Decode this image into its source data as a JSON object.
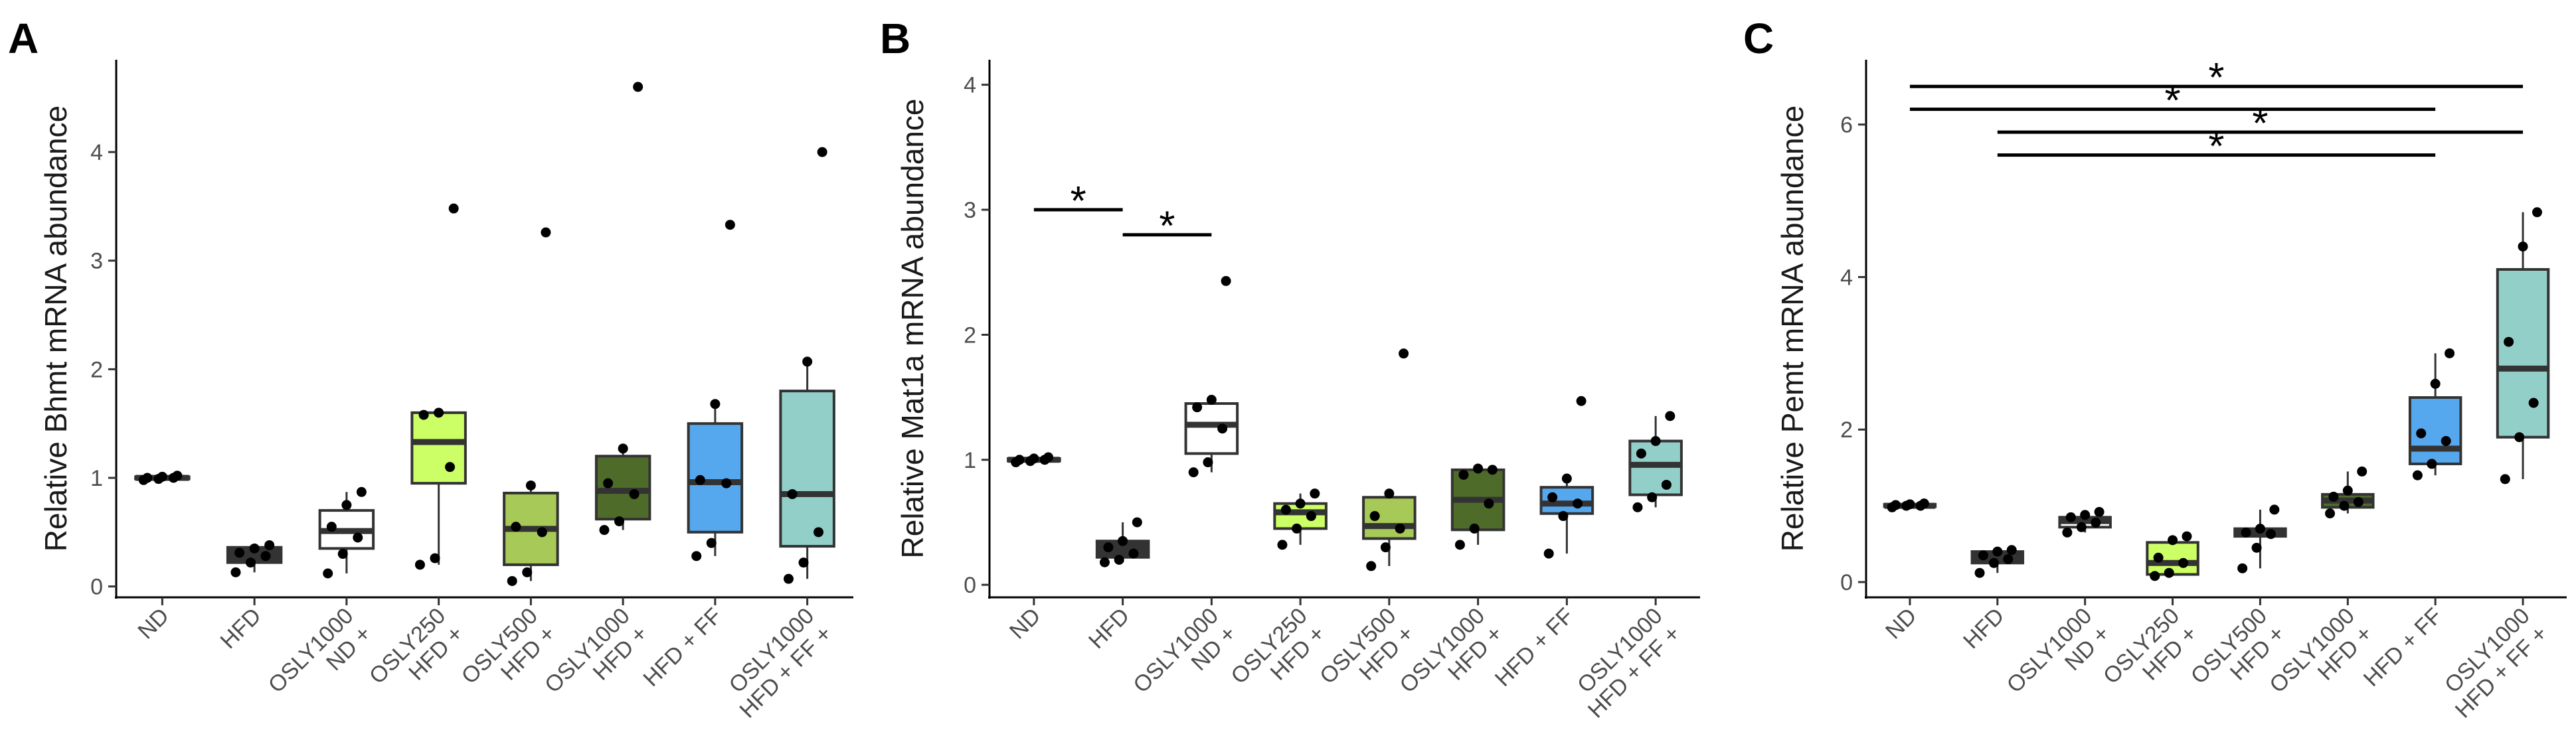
{
  "colors": {
    "ND": "#f2f2f2",
    "HFD": "#333333",
    "ND_OSLY1000": "#ffffff",
    "HFD_OSLY250": "#ccff66",
    "HFD_OSLY500": "#a7c957",
    "HFD_OSLY1000": "#4f6b2a",
    "HFD_FF": "#56a8ee",
    "HFD_FF_OSLY1000": "#93cfc9"
  },
  "chart_data": [
    {
      "panel": "A",
      "type": "box",
      "ylabel": "Relative Bhmt mRNA abundance",
      "ylim": [
        -0.1,
        4.85
      ],
      "yticks": [
        0,
        1,
        2,
        3,
        4
      ],
      "categories": [
        [
          "ND"
        ],
        [
          "HFD"
        ],
        [
          "ND +",
          "OSLY1000"
        ],
        [
          "HFD +",
          "OSLY250"
        ],
        [
          "HFD +",
          "OSLY500"
        ],
        [
          "HFD +",
          "OSLY1000"
        ],
        [
          "HFD + FF"
        ],
        [
          "HFD + FF +",
          "OSLY1000"
        ]
      ],
      "color_keys": [
        "ND",
        "HFD",
        "ND_OSLY1000",
        "HFD_OSLY250",
        "HFD_OSLY500",
        "HFD_OSLY1000",
        "HFD_FF",
        "HFD_FF_OSLY1000"
      ],
      "boxes": [
        {
          "min": 0.99,
          "q1": 0.99,
          "median": 1.0,
          "q3": 1.01,
          "max": 1.01
        },
        {
          "min": 0.13,
          "q1": 0.22,
          "median": 0.28,
          "q3": 0.36,
          "max": 0.38
        },
        {
          "min": 0.12,
          "q1": 0.35,
          "median": 0.51,
          "q3": 0.7,
          "max": 0.87
        },
        {
          "min": 0.2,
          "q1": 0.95,
          "median": 1.33,
          "q3": 1.6,
          "max": 1.6
        },
        {
          "min": 0.05,
          "q1": 0.2,
          "median": 0.53,
          "q3": 0.86,
          "max": 0.93
        },
        {
          "min": 0.52,
          "q1": 0.62,
          "median": 0.88,
          "q3": 1.2,
          "max": 1.27
        },
        {
          "min": 0.28,
          "q1": 0.5,
          "median": 0.96,
          "q3": 1.5,
          "max": 1.68
        },
        {
          "min": 0.07,
          "q1": 0.37,
          "median": 0.85,
          "q3": 1.8,
          "max": 2.07
        }
      ],
      "points": [
        [
          0.98,
          0.99,
          1.0,
          1.0,
          1.01,
          1.02
        ],
        [
          0.13,
          0.22,
          0.28,
          0.31,
          0.35,
          0.38
        ],
        [
          0.12,
          0.3,
          0.45,
          0.55,
          0.75,
          0.87
        ],
        [
          0.2,
          0.26,
          1.1,
          1.58,
          1.6,
          3.48
        ],
        [
          0.05,
          0.13,
          0.5,
          0.55,
          0.93,
          3.26
        ],
        [
          0.52,
          0.6,
          0.85,
          0.95,
          1.27,
          4.6
        ],
        [
          0.28,
          0.4,
          0.95,
          0.98,
          1.68,
          3.33
        ],
        [
          0.07,
          0.22,
          0.5,
          0.85,
          2.07,
          4.0
        ]
      ],
      "significance": []
    },
    {
      "panel": "B",
      "type": "box",
      "ylabel": "Relative Mat1a mRNA abundance",
      "ylim": [
        -0.1,
        4.2
      ],
      "yticks": [
        0,
        1,
        2,
        3,
        4
      ],
      "categories": [
        [
          "ND"
        ],
        [
          "HFD"
        ],
        [
          "ND +",
          "OSLY1000"
        ],
        [
          "HFD +",
          "OSLY250"
        ],
        [
          "HFD +",
          "OSLY500"
        ],
        [
          "HFD +",
          "OSLY1000"
        ],
        [
          "HFD + FF"
        ],
        [
          "HFD + FF +",
          "OSLY1000"
        ]
      ],
      "color_keys": [
        "ND",
        "HFD",
        "ND_OSLY1000",
        "HFD_OSLY250",
        "HFD_OSLY500",
        "HFD_OSLY1000",
        "HFD_FF",
        "HFD_FF_OSLY1000"
      ],
      "boxes": [
        {
          "min": 0.99,
          "q1": 0.99,
          "median": 1.0,
          "q3": 1.01,
          "max": 1.01
        },
        {
          "min": 0.18,
          "q1": 0.22,
          "median": 0.27,
          "q3": 0.35,
          "max": 0.5
        },
        {
          "min": 0.9,
          "q1": 1.05,
          "median": 1.28,
          "q3": 1.45,
          "max": 1.48
        },
        {
          "min": 0.32,
          "q1": 0.45,
          "median": 0.58,
          "q3": 0.65,
          "max": 0.73
        },
        {
          "min": 0.15,
          "q1": 0.37,
          "median": 0.47,
          "q3": 0.7,
          "max": 0.73
        },
        {
          "min": 0.32,
          "q1": 0.44,
          "median": 0.68,
          "q3": 0.92,
          "max": 0.93
        },
        {
          "min": 0.25,
          "q1": 0.57,
          "median": 0.65,
          "q3": 0.78,
          "max": 0.85
        },
        {
          "min": 0.62,
          "q1": 0.72,
          "median": 0.96,
          "q3": 1.15,
          "max": 1.35
        }
      ],
      "points": [
        [
          0.98,
          0.99,
          1.0,
          1.0,
          1.01,
          1.02
        ],
        [
          0.18,
          0.2,
          0.25,
          0.3,
          0.35,
          0.5
        ],
        [
          0.9,
          0.98,
          1.25,
          1.42,
          1.48,
          2.43
        ],
        [
          0.32,
          0.45,
          0.55,
          0.6,
          0.65,
          0.73
        ],
        [
          0.15,
          0.3,
          0.45,
          0.55,
          0.73,
          1.85
        ],
        [
          0.32,
          0.45,
          0.65,
          0.88,
          0.93,
          0.92
        ],
        [
          0.25,
          0.55,
          0.65,
          0.7,
          0.85,
          1.47
        ],
        [
          0.62,
          0.7,
          0.8,
          1.05,
          1.15,
          1.35
        ]
      ],
      "significance": [
        {
          "from": 0,
          "to": 1,
          "y": 3.0,
          "label": "*"
        },
        {
          "from": 1,
          "to": 2,
          "y": 2.8,
          "label": "*"
        }
      ]
    },
    {
      "panel": "C",
      "type": "box",
      "ylabel": "Relative Pemt mRNA abundance",
      "ylim": [
        -0.2,
        6.85
      ],
      "yticks": [
        0,
        2,
        4,
        6
      ],
      "categories": [
        [
          "ND"
        ],
        [
          "HFD"
        ],
        [
          "ND +",
          "OSLY1000"
        ],
        [
          "HFD +",
          "OSLY250"
        ],
        [
          "HFD +",
          "OSLY500"
        ],
        [
          "HFD +",
          "OSLY1000"
        ],
        [
          "HFD + FF"
        ],
        [
          "HFD + FF +",
          "OSLY1000"
        ]
      ],
      "color_keys": [
        "ND",
        "HFD",
        "ND_OSLY1000",
        "HFD_OSLY250",
        "HFD_OSLY500",
        "HFD_OSLY1000",
        "HFD_FF",
        "HFD_FF_OSLY1000"
      ],
      "boxes": [
        {
          "min": 0.98,
          "q1": 0.99,
          "median": 1.0,
          "q3": 1.02,
          "max": 1.03
        },
        {
          "min": 0.12,
          "q1": 0.25,
          "median": 0.32,
          "q3": 0.4,
          "max": 0.42
        },
        {
          "min": 0.65,
          "q1": 0.72,
          "median": 0.8,
          "q3": 0.85,
          "max": 0.92
        },
        {
          "min": 0.08,
          "q1": 0.1,
          "median": 0.25,
          "q3": 0.52,
          "max": 0.6
        },
        {
          "min": 0.18,
          "q1": 0.6,
          "median": 0.65,
          "q3": 0.7,
          "max": 0.95
        },
        {
          "min": 0.9,
          "q1": 0.98,
          "median": 1.07,
          "q3": 1.15,
          "max": 1.45
        },
        {
          "min": 1.4,
          "q1": 1.55,
          "median": 1.75,
          "q3": 2.42,
          "max": 3.0
        },
        {
          "min": 1.35,
          "q1": 1.9,
          "median": 2.8,
          "q3": 4.1,
          "max": 4.85
        }
      ],
      "points": [
        [
          0.98,
          1.0,
          1.0,
          1.01,
          1.02,
          1.03
        ],
        [
          0.12,
          0.25,
          0.3,
          0.35,
          0.4,
          0.42
        ],
        [
          0.65,
          0.72,
          0.78,
          0.85,
          0.88,
          0.92
        ],
        [
          0.08,
          0.12,
          0.25,
          0.32,
          0.55,
          0.6
        ],
        [
          0.18,
          0.45,
          0.63,
          0.65,
          0.7,
          0.95
        ],
        [
          0.9,
          1.0,
          1.05,
          1.12,
          1.2,
          1.45
        ],
        [
          1.4,
          1.55,
          1.85,
          1.95,
          2.6,
          3.0
        ],
        [
          1.35,
          1.9,
          2.35,
          3.15,
          4.4,
          4.85
        ]
      ],
      "significance": [
        {
          "from": 0,
          "to": 7,
          "y": 6.5,
          "label": "*"
        },
        {
          "from": 0,
          "to": 6,
          "y": 6.2,
          "label": "*"
        },
        {
          "from": 1,
          "to": 7,
          "y": 5.9,
          "label": "*"
        },
        {
          "from": 1,
          "to": 6,
          "y": 5.6,
          "label": "*"
        }
      ]
    }
  ]
}
